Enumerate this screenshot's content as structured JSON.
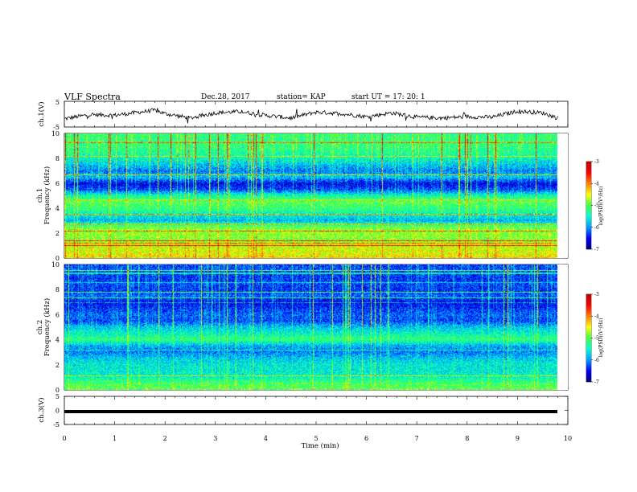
{
  "header": {
    "title": "VLF Spectra",
    "date": "Dec.28, 2017",
    "station": "station= KAP",
    "start": "start  UT =   17: 20: 1"
  },
  "colors": {
    "spectrogram_map": [
      "#000080",
      "#0000ff",
      "#00a0ff",
      "#00ffd0",
      "#40ff40",
      "#ffff00",
      "#ff8000",
      "#ff0000",
      "#c00000"
    ],
    "waveform": "#000000",
    "axes": "#000000"
  },
  "chart_data": [
    {
      "type": "line",
      "panel": "ch1-waveform",
      "ylabel": "ch.1(V)",
      "yticks": [
        "5",
        "-5"
      ],
      "ylim": [
        -5,
        5
      ],
      "xlim": [
        0,
        10
      ],
      "series": [
        {
          "x": [
            0,
            0.5,
            1.0,
            1.5,
            1.8,
            2.0,
            2.5,
            3.0,
            3.5,
            4.0,
            4.5,
            5.0,
            5.5,
            6.0,
            6.5,
            7.0,
            7.5,
            8.0,
            8.5,
            9.0,
            9.5,
            9.8
          ],
          "values": [
            -1.8,
            -0.2,
            -0.4,
            0.8,
            1.5,
            0.2,
            -1.5,
            0.5,
            1.0,
            -0.5,
            -1.5,
            0.8,
            0.2,
            -1.0,
            0.5,
            -1.2,
            -1.5,
            -1.0,
            -1.2,
            1.2,
            0.5,
            -1.5
          ]
        }
      ]
    },
    {
      "type": "heatmap",
      "panel": "ch1-spectrogram",
      "ylabel": "ch.1\nFrequency (kHz)",
      "yticks": [
        "0",
        "2",
        "4",
        "6",
        "8",
        "10"
      ],
      "ylim": [
        0,
        10
      ],
      "xlim": [
        0,
        10
      ],
      "colorbar": {
        "label": "log(PSD)(V²/Hz)",
        "ticks": [
          "-3",
          "-4",
          "-5",
          "-6",
          "-7"
        ],
        "range": [
          -7,
          -3
        ]
      },
      "frequency_profile_khz": [
        0,
        0.5,
        1.0,
        1.5,
        2.0,
        2.5,
        3.0,
        3.5,
        4.0,
        4.5,
        5.0,
        5.5,
        6.0,
        6.5,
        7.0,
        7.5,
        8.0,
        8.5,
        9.0,
        9.5,
        10.0
      ],
      "mean_log_psd": [
        -4.4,
        -4.6,
        -4.6,
        -4.9,
        -4.8,
        -5.0,
        -5.9,
        -5.5,
        -5.2,
        -5.0,
        -5.4,
        -6.3,
        -6.6,
        -5.8,
        -6.1,
        -5.8,
        -5.5,
        -5.3,
        -5.2,
        -5.2,
        -5.2
      ]
    },
    {
      "type": "heatmap",
      "panel": "ch2-spectrogram",
      "ylabel": "ch.2\nFrequency (kHz)",
      "yticks": [
        "0",
        "2",
        "4",
        "6",
        "8",
        "10"
      ],
      "ylim": [
        0,
        10
      ],
      "xlim": [
        0,
        10
      ],
      "colorbar": {
        "label": "log(PSD)(V²/Hz)",
        "ticks": [
          "-3",
          "-4",
          "-5",
          "-6",
          "-7"
        ],
        "range": [
          -7,
          -3
        ]
      },
      "frequency_profile_khz": [
        0,
        0.5,
        1.0,
        1.5,
        2.0,
        2.5,
        3.0,
        3.5,
        4.0,
        4.5,
        5.0,
        5.5,
        6.0,
        6.5,
        7.0,
        7.5,
        8.0,
        8.5,
        9.0,
        9.5,
        10.0
      ],
      "mean_log_psd": [
        -5.0,
        -5.1,
        -5.5,
        -5.6,
        -5.6,
        -5.8,
        -6.1,
        -5.9,
        -5.2,
        -5.5,
        -5.8,
        -6.3,
        -6.2,
        -6.4,
        -6.6,
        -6.2,
        -6.4,
        -6.3,
        -6.4,
        -6.3,
        -6.3
      ]
    },
    {
      "type": "line",
      "panel": "ch3-waveform",
      "ylabel": "ch.3(V)",
      "yticks": [
        "5",
        "0",
        "-5"
      ],
      "ylim": [
        -5,
        5
      ],
      "xlim": [
        0,
        10
      ],
      "series": [
        {
          "x": [
            0,
            9.8
          ],
          "values": [
            0,
            0
          ]
        }
      ]
    }
  ],
  "xaxis": {
    "label": "Time (min)",
    "ticks": [
      "0",
      "1",
      "2",
      "3",
      "4",
      "5",
      "6",
      "7",
      "8",
      "9",
      "10"
    ]
  }
}
